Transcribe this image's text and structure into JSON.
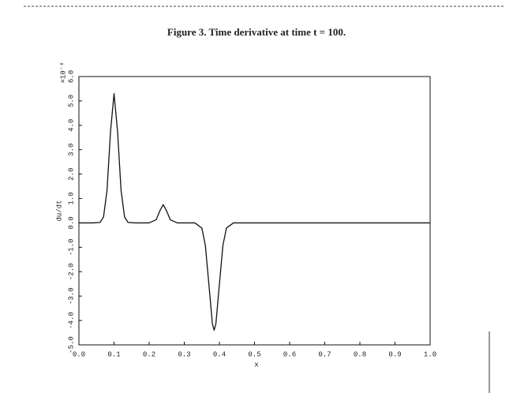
{
  "chart_data": {
    "type": "line",
    "title": "Figure 3.  Time derivative at time t = 100.",
    "x_label": "x",
    "y_label": "du/dt",
    "y_multiplier": "×10⁻⁸",
    "x": [
      0,
      0.04,
      0.06,
      0.07,
      0.08,
      0.09,
      0.1,
      0.11,
      0.12,
      0.13,
      0.14,
      0.16,
      0.2,
      0.22,
      0.23,
      0.24,
      0.25,
      0.26,
      0.28,
      0.33,
      0.35,
      0.36,
      0.37,
      0.38,
      0.385,
      0.39,
      0.4,
      0.41,
      0.42,
      0.44,
      0.5,
      1.0
    ],
    "values": [
      0,
      0,
      0.02,
      0.24,
      1.33,
      3.75,
      5.3,
      3.75,
      1.33,
      0.24,
      0.02,
      0,
      0,
      0.13,
      0.48,
      0.75,
      0.48,
      0.13,
      0,
      0,
      -0.21,
      -0.92,
      -2.51,
      -4.13,
      -4.4,
      -4.13,
      -2.51,
      -0.92,
      -0.21,
      0,
      0,
      0
    ],
    "color": "#111111",
    "xlim": [
      0,
      1
    ],
    "ylim": [
      -5,
      6
    ],
    "xticks": [
      {
        "value": 0,
        "label": "0.0"
      },
      0.1,
      0.2,
      0.3,
      0.4,
      0.5,
      0.6,
      0.7,
      0.8,
      0.9,
      {
        "value": 1,
        "label": "1.0"
      }
    ],
    "yticks": [
      {
        "value": -5,
        "label": "-5.0"
      },
      {
        "value": -4,
        "label": "-4.0"
      },
      {
        "value": -3,
        "label": "-3.0"
      },
      {
        "value": -2,
        "label": "-2.0"
      },
      {
        "value": -1,
        "label": "-1.0"
      },
      {
        "value": 0,
        "label": "0.0"
      },
      {
        "value": 1,
        "label": "1.0"
      },
      {
        "value": 2,
        "label": "2.0"
      },
      {
        "value": 3,
        "label": "3.0"
      },
      {
        "value": 4,
        "label": "4.0"
      },
      {
        "value": 5,
        "label": "5.0"
      },
      {
        "value": 6,
        "label": "6.0"
      }
    ],
    "grid": false
  }
}
